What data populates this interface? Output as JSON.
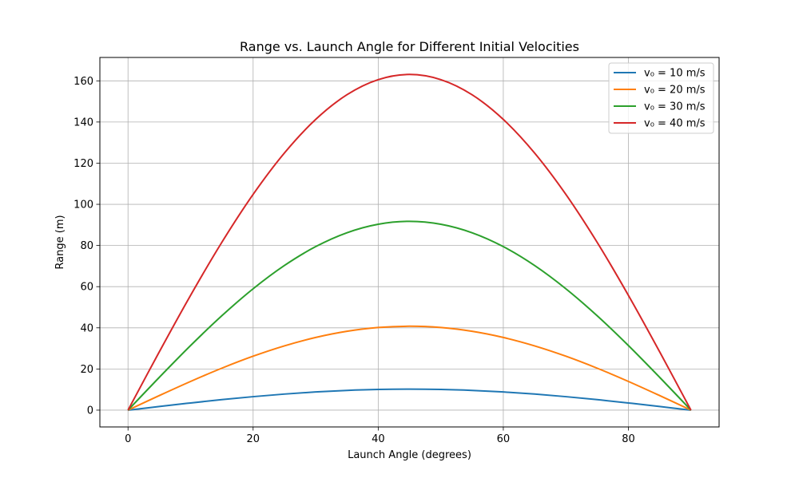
{
  "chart_data": {
    "type": "line",
    "title": "Range vs. Launch Angle for Different Initial Velocities",
    "xlabel": "Launch Angle (degrees)",
    "ylabel": "Range (m)",
    "xlim": [
      -4.5,
      94.5
    ],
    "ylim": [
      -8.16,
      171.36
    ],
    "xticks": [
      0,
      20,
      40,
      60,
      80
    ],
    "yticks": [
      0,
      20,
      40,
      60,
      80,
      100,
      120,
      140,
      160
    ],
    "grid": true,
    "legend_position": "upper right",
    "x": [
      0,
      5,
      10,
      15,
      20,
      25,
      30,
      35,
      40,
      45,
      50,
      55,
      60,
      65,
      70,
      75,
      80,
      85,
      90
    ],
    "series": [
      {
        "name": "v₀ = 10 m/s",
        "color": "#1f77b4",
        "values": [
          0,
          1.77,
          3.49,
          5.1,
          6.55,
          7.81,
          8.83,
          9.58,
          10.04,
          10.19,
          10.04,
          9.58,
          8.83,
          7.81,
          6.55,
          5.1,
          3.49,
          1.77,
          0
        ]
      },
      {
        "name": "v₀ = 20 m/s",
        "color": "#ff7f0e",
        "values": [
          0,
          7.08,
          13.95,
          20.39,
          26.21,
          31.23,
          35.31,
          38.31,
          40.15,
          40.77,
          40.15,
          38.31,
          35.31,
          31.23,
          26.21,
          20.39,
          13.95,
          7.08,
          0
        ]
      },
      {
        "name": "v₀ = 30 m/s",
        "color": "#2ca02c",
        "values": [
          0,
          15.93,
          31.38,
          45.87,
          58.97,
          70.28,
          79.45,
          86.2,
          90.33,
          91.74,
          90.33,
          86.2,
          79.45,
          70.28,
          58.97,
          45.87,
          31.38,
          15.93,
          0
        ]
      },
      {
        "name": "v₀ = 40 m/s",
        "color": "#d62728",
        "values": [
          0,
          28.32,
          55.78,
          81.55,
          104.83,
          124.93,
          141.25,
          153.25,
          160.59,
          163.1,
          160.59,
          153.25,
          141.25,
          124.93,
          104.83,
          81.55,
          55.78,
          28.32,
          0
        ]
      }
    ]
  }
}
